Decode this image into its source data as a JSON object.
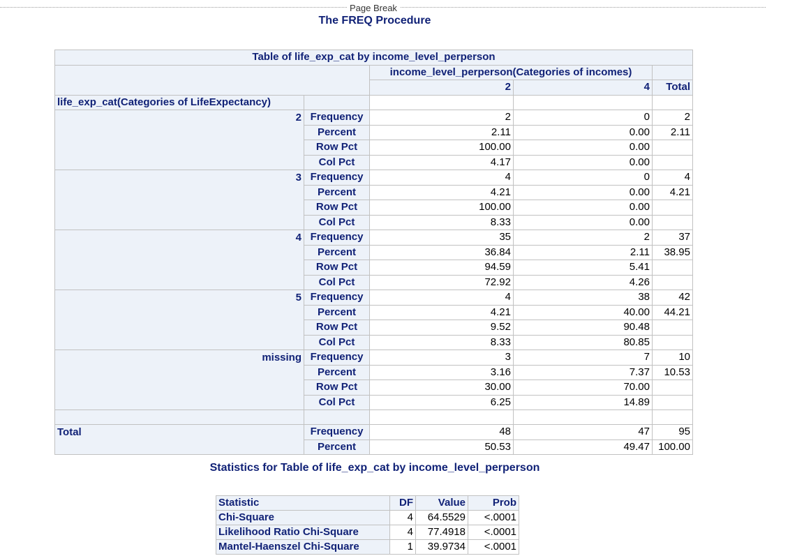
{
  "page_break_label": "Page Break",
  "procedure_title": "The FREQ Procedure",
  "crosstab": {
    "title": "Table of life_exp_cat by income_level_perperson",
    "col_var_label": "income_level_perperson(Categories of incomes)",
    "col_levels": [
      "2",
      "4"
    ],
    "total_label": "Total",
    "row_var_label": "life_exp_cat(Categories of LifeExpectancy)",
    "stat_labels": [
      "Frequency",
      "Percent",
      "Row Pct",
      "Col Pct"
    ],
    "groups": [
      {
        "level": "2",
        "stats": [
          [
            "2",
            "0",
            "2"
          ],
          [
            "2.11",
            "0.00",
            "2.11"
          ],
          [
            "100.00",
            "0.00",
            ""
          ],
          [
            "4.17",
            "0.00",
            ""
          ]
        ]
      },
      {
        "level": "3",
        "stats": [
          [
            "4",
            "0",
            "4"
          ],
          [
            "4.21",
            "0.00",
            "4.21"
          ],
          [
            "100.00",
            "0.00",
            ""
          ],
          [
            "8.33",
            "0.00",
            ""
          ]
        ]
      },
      {
        "level": "4",
        "stats": [
          [
            "35",
            "2",
            "37"
          ],
          [
            "36.84",
            "2.11",
            "38.95"
          ],
          [
            "94.59",
            "5.41",
            ""
          ],
          [
            "72.92",
            "4.26",
            ""
          ]
        ]
      },
      {
        "level": "5",
        "stats": [
          [
            "4",
            "38",
            "42"
          ],
          [
            "4.21",
            "40.00",
            "44.21"
          ],
          [
            "9.52",
            "90.48",
            ""
          ],
          [
            "8.33",
            "80.85",
            ""
          ]
        ]
      },
      {
        "level": "missing",
        "stats": [
          [
            "3",
            "7",
            "10"
          ],
          [
            "3.16",
            "7.37",
            "10.53"
          ],
          [
            "30.00",
            "70.00",
            ""
          ],
          [
            "6.25",
            "14.89",
            ""
          ]
        ]
      }
    ],
    "total_row": {
      "label": "Total",
      "stat_labels": [
        "Frequency",
        "Percent"
      ],
      "stats": [
        [
          "48",
          "47",
          "95"
        ],
        [
          "50.53",
          "49.47",
          "100.00"
        ]
      ]
    }
  },
  "statistics": {
    "title": "Statistics for Table of life_exp_cat by income_level_perperson",
    "headers": {
      "statistic": "Statistic",
      "df": "DF",
      "value": "Value",
      "prob": "Prob"
    },
    "rows": [
      {
        "statistic": "Chi-Square",
        "df": "4",
        "value": "64.5529",
        "prob": "<.0001"
      },
      {
        "statistic": "Likelihood Ratio Chi-Square",
        "df": "4",
        "value": "77.4918",
        "prob": "<.0001"
      },
      {
        "statistic": "Mantel-Haenszel Chi-Square",
        "df": "1",
        "value": "39.9734",
        "prob": "<.0001"
      }
    ]
  }
}
